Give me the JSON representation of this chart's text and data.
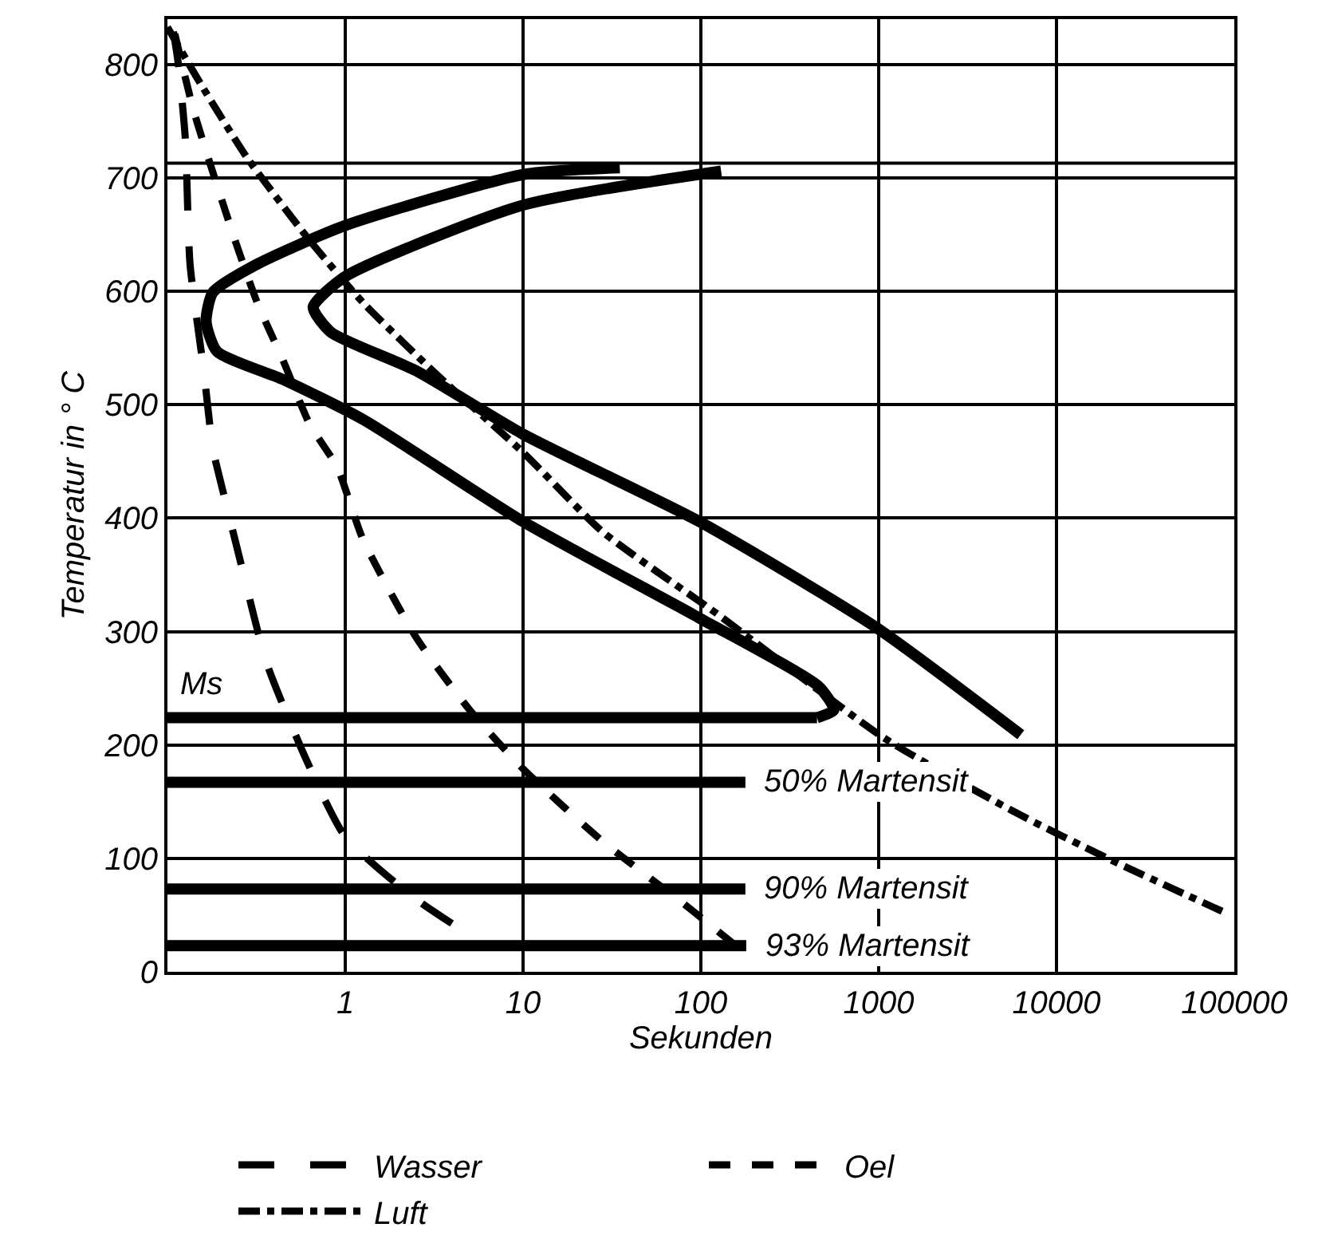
{
  "chart_data": {
    "type": "line",
    "xlabel": "Sekunden",
    "ylabel": "Temperatur in ° C",
    "log": "x",
    "grid": true,
    "legend": "bottom",
    "marker": "none",
    "xlim": [
      0.1,
      100000
    ],
    "xticks": [
      1,
      10,
      100,
      1000,
      10000,
      100000
    ],
    "ylim": [
      0,
      840
    ],
    "yticks": [
      0,
      100,
      200,
      300,
      400,
      500,
      600,
      700,
      800
    ],
    "ref_lines": [
      {
        "axis": "y",
        "value": 713,
        "color": "#000000",
        "line_style": "solid"
      }
    ],
    "series": [
      {
        "color": "#000000",
        "line_style": "solid",
        "x": [
          35,
          10,
          1,
          0.32,
          0.18,
          0.165,
          0.19,
          0.45,
          1.26,
          10,
          98,
          457,
          560,
          450
        ],
        "values": [
          709,
          703,
          658,
          624,
          599,
          573,
          547,
          522,
          487,
          397,
          312,
          252,
          231,
          224
        ]
      },
      {
        "name": "Ms",
        "color": "#000000",
        "line_style": "solid",
        "x": [
          450,
          0.1
        ],
        "values": [
          224,
          224
        ]
      },
      {
        "color": "#000000",
        "line_style": "solid",
        "x": [
          130,
          10,
          1,
          0.66,
          0.83,
          2.5,
          10,
          98,
          960,
          6300
        ],
        "values": [
          706,
          676,
          613,
          586,
          564,
          530,
          474,
          397,
          304,
          209
        ]
      },
      {
        "name": "50% Martensit",
        "color": "#000000",
        "line_style": "solid",
        "x": [
          0.1,
          178
        ],
        "values": [
          167,
          167
        ]
      },
      {
        "name": "90% Martensit",
        "color": "#000000",
        "line_style": "solid",
        "x": [
          0.1,
          178
        ],
        "values": [
          73,
          73
        ]
      },
      {
        "name": "93% Martensit",
        "color": "#000000",
        "line_style": "solid",
        "x": [
          0.1,
          180
        ],
        "values": [
          23,
          23
        ]
      },
      {
        "name": "Wasser",
        "color": "#000000",
        "line_style": "longdash",
        "x": [
          0.108,
          0.115,
          0.126,
          0.134,
          0.16,
          0.18,
          0.19,
          0.26,
          0.36,
          0.6,
          1,
          2.5,
          5.8
        ],
        "values": [
          829,
          801,
          735,
          624,
          530,
          461,
          445,
          359,
          273,
          188,
          119,
          64,
          26
        ]
      },
      {
        "name": "Oel",
        "color": "#000000",
        "line_style": "dashed",
        "x": [
          0.11,
          0.14,
          0.18,
          0.24,
          0.32,
          0.45,
          0.63,
          0.9,
          1.26,
          2.5,
          5,
          10,
          28,
          80,
          160
        ],
        "values": [
          827,
          760,
          705,
          645,
          590,
          538,
          483,
          445,
          381,
          295,
          231,
          179,
          115,
          60,
          22
        ]
      },
      {
        "name": "Luft",
        "color": "#000000",
        "line_style": "dashdot",
        "x": [
          0.1,
          0.155,
          0.28,
          0.63,
          1.26,
          3.3,
          10,
          28,
          120,
          200,
          1100,
          5800,
          20000,
          92000
        ],
        "values": [
          833,
          782,
          718,
          645,
          590,
          526,
          458,
          388,
          317,
          291,
          205,
          141,
          99,
          51
        ]
      }
    ]
  }
}
